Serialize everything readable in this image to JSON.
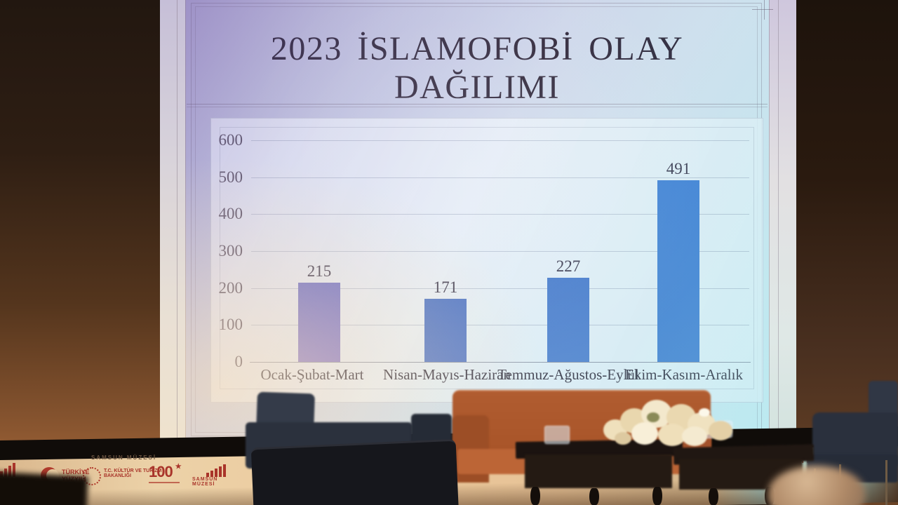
{
  "slide": {
    "title": "2023 İSLAMOFOBİ OLAY DAĞILIMI"
  },
  "chart_data": {
    "type": "bar",
    "title": "2023 İSLAMOFOBİ OLAY DAĞILIMI",
    "categories": [
      "Ocak-Şubat-Mart",
      "Nisan-Mayıs-Haziran",
      "Temmuz-Ağustos-Eylül",
      "Ekim-Kasım-Aralık"
    ],
    "values": [
      215,
      171,
      227,
      491
    ],
    "data_labels": [
      "215",
      "171",
      "227",
      "491"
    ],
    "yticks": [
      0,
      100,
      200,
      300,
      400,
      500,
      600
    ],
    "ylim": [
      0,
      600
    ],
    "xlabel": "",
    "ylabel": "",
    "grid": true,
    "legend": false,
    "bar_color": "#4a74c8"
  },
  "banner": {
    "top_strip_label": "SAMSUN MÜZESİ",
    "right_partial_label": "SAMSUN M",
    "logos": {
      "partial_left_label": "MÜZESİ",
      "turkiye_line1": "TÜRKİYE",
      "turkiye_line2": "YÜZYILI",
      "ministry_line1": "T.C. KÜLTÜR VE TURİZM",
      "ministry_line2": "BAKANLIĞI",
      "centenary_number": "100",
      "samsun_muzesi_label": "SAMSUN MÜZESİ"
    }
  },
  "colors": {
    "bar_blue": "#4a74c8",
    "slide_lavender": "#c6c8e4",
    "banner_cream": "#ecd2a8",
    "logo_red": "#a9342a",
    "sofa_orange": "#b05c30",
    "chair_navy": "#2b313d"
  }
}
